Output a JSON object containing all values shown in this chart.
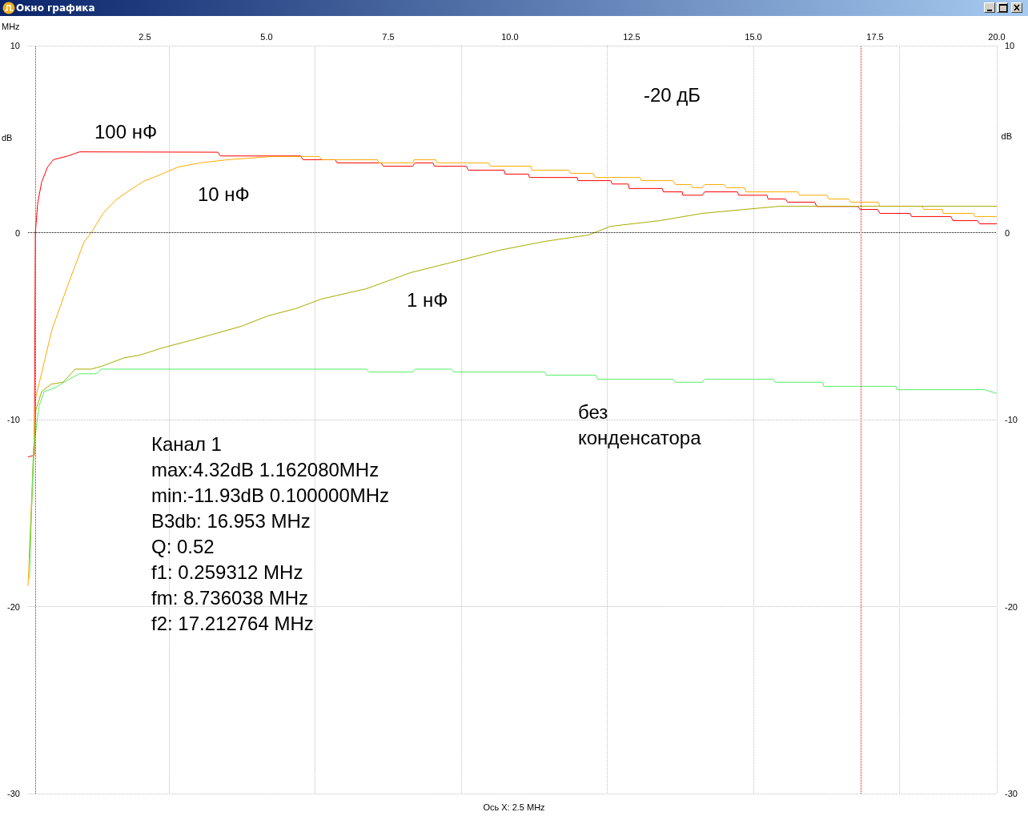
{
  "chart_data": {
    "type": "line",
    "title": "Окно графика",
    "xlabel": "MHz",
    "ylabel": "dB",
    "y2label": "dB",
    "xlim": [
      0.1,
      20
    ],
    "xticks": [
      2.5,
      {
        "value": 5,
        "label": "5.0"
      },
      7.5,
      {
        "value": 10,
        "label": "10.0"
      },
      12.5,
      {
        "value": 15,
        "label": "15.0"
      },
      17.5,
      {
        "value": 20,
        "label": "20.0"
      }
    ],
    "ylim": [
      -30,
      10
    ],
    "yticks": [
      -30,
      -20,
      -10,
      0,
      10
    ],
    "y2lim": [
      -30,
      10
    ],
    "y2ticks": [
      -30,
      -20,
      -10,
      0,
      10
    ],
    "grid": true,
    "marker": "none",
    "line_style": "solid",
    "ref_lines": [
      {
        "axis": "y",
        "value": 0,
        "color": "#000000",
        "line_style": "dotted"
      },
      {
        "axis": "x",
        "value": 0.259312,
        "color": "#ff0000",
        "line_style": "dotted"
      },
      {
        "axis": "x",
        "value": 17.212764,
        "color": "#ff0000",
        "line_style": "dotted"
      }
    ],
    "series": [
      {
        "name": "100 нФ",
        "color": "#ff0000",
        "x": [
          0.1,
          0.23,
          0.24,
          0.25,
          0.3,
          0.38,
          0.5,
          0.62,
          0.92,
          1.16,
          4.0,
          4.05,
          5.7,
          5.75,
          6.41,
          6.45,
          7.35,
          7.4,
          8.0,
          8.05,
          8.42,
          8.45,
          9.1,
          9.15,
          9.88,
          9.9,
          10.38,
          10.4,
          11.38,
          11.4,
          12.07,
          12.1,
          12.43,
          12.45,
          13.13,
          13.15,
          13.54,
          13.55,
          13.95,
          14.0,
          14.67,
          14.7,
          15.28,
          15.3,
          15.66,
          15.7,
          16.26,
          16.3,
          17.14,
          17.2,
          17.55,
          17.6,
          18.22,
          18.25,
          19.06,
          19.1,
          19.6,
          19.65,
          20
        ],
        "values": [
          -12.0,
          -11.9,
          -6,
          0,
          1.6,
          2.7,
          3.5,
          3.9,
          4.1,
          4.32,
          4.3,
          4.1,
          4.1,
          3.9,
          3.9,
          3.73,
          3.73,
          3.55,
          3.55,
          3.73,
          3.73,
          3.55,
          3.55,
          3.34,
          3.34,
          3.13,
          3.13,
          2.95,
          2.95,
          2.78,
          2.78,
          2.6,
          2.6,
          2.36,
          2.36,
          2.18,
          2.18,
          2.0,
          2.0,
          2.18,
          2.18,
          2.0,
          2.0,
          1.8,
          1.8,
          1.63,
          1.63,
          1.4,
          1.4,
          1.24,
          1.24,
          1.03,
          1.03,
          0.86,
          0.86,
          0.64,
          0.64,
          0.47,
          0.47
        ]
      },
      {
        "name": "10 нФ",
        "color": "#ffaa00",
        "x": [
          0.1,
          0.26,
          0.38,
          0.59,
          0.92,
          1.25,
          1.4,
          1.64,
          1.91,
          2.14,
          2.47,
          2.85,
          3.17,
          3.63,
          4.21,
          5.1,
          6.08,
          6.13,
          7.28,
          7.3,
          8.01,
          8.03,
          8.47,
          8.5,
          9.56,
          9.6,
          10.43,
          10.45,
          11.21,
          11.25,
          11.71,
          11.75,
          12.67,
          12.7,
          13.35,
          13.4,
          13.72,
          13.75,
          13.95,
          14.0,
          14.4,
          14.45,
          14.82,
          14.85,
          15.91,
          15.95,
          16.51,
          16.55,
          16.96,
          17.0,
          17.56,
          17.6,
          18.47,
          18.5,
          18.88,
          18.9,
          19.52,
          19.55,
          20
        ],
        "values": [
          -18.9,
          -8.8,
          -7.5,
          -5.2,
          -2.8,
          -0.5,
          0,
          1.03,
          1.76,
          2.18,
          2.74,
          3.13,
          3.5,
          3.73,
          3.9,
          4.07,
          4.07,
          3.9,
          3.9,
          3.73,
          3.73,
          3.9,
          3.9,
          3.73,
          3.73,
          3.55,
          3.55,
          3.34,
          3.34,
          3.17,
          3.17,
          2.95,
          2.95,
          2.78,
          2.78,
          2.57,
          2.57,
          2.4,
          2.4,
          2.57,
          2.57,
          2.4,
          2.4,
          2.18,
          2.18,
          2.0,
          2.0,
          1.8,
          1.8,
          1.63,
          1.63,
          1.41,
          1.41,
          1.24,
          1.24,
          1.03,
          1.03,
          0.86,
          0.86
        ]
      },
      {
        "name": "1 нФ",
        "color": "#aaaa00",
        "x": [
          0.13,
          0.26,
          0.38,
          0.58,
          0.82,
          1.07,
          1.4,
          1.61,
          2.07,
          2.4,
          2.85,
          3.39,
          3.95,
          4.49,
          5.03,
          5.59,
          6.13,
          7.05,
          7.96,
          8.88,
          9.79,
          10.71,
          11.61,
          12.07,
          13.08,
          13.95,
          14.82,
          15.54,
          20
        ],
        "values": [
          -17.4,
          -9.5,
          -8.5,
          -8.1,
          -8.0,
          -7.3,
          -7.3,
          -7.15,
          -6.7,
          -6.55,
          -6.17,
          -5.8,
          -5.4,
          -5.0,
          -4.45,
          -4.07,
          -3.55,
          -3.0,
          -2.14,
          -1.54,
          -0.94,
          -0.47,
          -0.13,
          0.34,
          0.64,
          1.03,
          1.24,
          1.41,
          1.41
        ]
      },
      {
        "name": "без\nконденсатора",
        "color": "#55ee66",
        "x": [
          0.13,
          0.21,
          0.33,
          0.43,
          0.66,
          0.9,
          1.15,
          1.5,
          1.61,
          7.05,
          7.1,
          8.01,
          8.05,
          8.79,
          8.85,
          10.71,
          10.75,
          11.76,
          11.8,
          13.35,
          13.4,
          13.95,
          14.0,
          15.41,
          15.45,
          16.42,
          16.45,
          17.93,
          17.95,
          19.75,
          20
        ],
        "values": [
          -18.5,
          -11.6,
          -9.25,
          -8.5,
          -8.3,
          -7.9,
          -7.55,
          -7.55,
          -7.3,
          -7.3,
          -7.45,
          -7.45,
          -7.3,
          -7.3,
          -7.45,
          -7.45,
          -7.62,
          -7.62,
          -7.84,
          -7.84,
          -8.0,
          -8.0,
          -7.84,
          -7.84,
          -8.0,
          -8.0,
          -8.22,
          -8.22,
          -8.4,
          -8.4,
          -8.6
        ]
      }
    ],
    "annotations": [
      "-20 дБ",
      "Канал 1",
      "max:4.32dB 1.162080MHz",
      "min:-11.93dB 0.100000MHz",
      "B3db: 16.953 MHz",
      "Q: 0.52",
      "f1: 0.259312 MHz",
      "fm: 8.736038 MHz",
      "f2: 17.212764 MHz",
      "Ось X: 2.5 MHz"
    ]
  }
}
